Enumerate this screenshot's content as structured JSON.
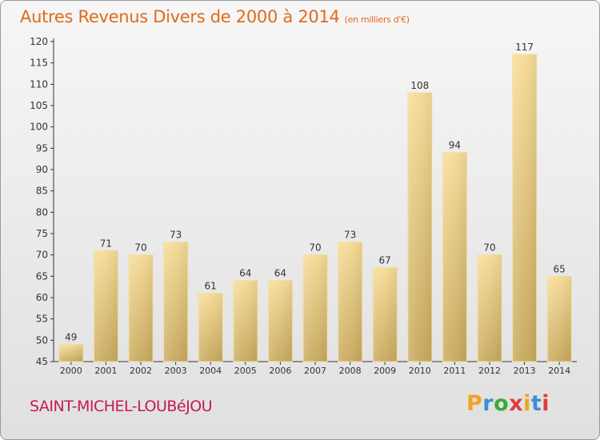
{
  "header": {
    "title": "Autres Revenus Divers de 2000 à 2014",
    "unit": "(en milliers d'€)"
  },
  "footer": {
    "commune": "SAINT-MICHEL-LOUBéJOU",
    "brand_letters": [
      "P",
      "r",
      "o",
      "x",
      "i",
      "t",
      "i"
    ],
    "brand_colors": [
      "#f2a323",
      "#3b8fd6",
      "#3aaa35",
      "#e23b3b",
      "#f2a323",
      "#3b8fd6",
      "#e23b3b"
    ]
  },
  "chart_data": {
    "type": "bar",
    "categories": [
      "2000",
      "2001",
      "2002",
      "2003",
      "2004",
      "2005",
      "2006",
      "2007",
      "2008",
      "2009",
      "2010",
      "2011",
      "2012",
      "2013",
      "2014"
    ],
    "values": [
      49,
      71,
      70,
      73,
      61,
      64,
      64,
      70,
      73,
      67,
      108,
      94,
      70,
      117,
      65
    ],
    "data_labels": [
      "49",
      "71",
      "70",
      "73",
      "61",
      "64",
      "64",
      "70",
      "73",
      "67",
      "108",
      "94",
      "70",
      "117",
      "65"
    ],
    "ylim": [
      45,
      120
    ],
    "yticks": [
      "45",
      "50",
      "55",
      "60",
      "65",
      "70",
      "75",
      "80",
      "85",
      "90",
      "95",
      "100",
      "105",
      "110",
      "115",
      "120"
    ],
    "grid": false,
    "bar_color": "#e8c878",
    "bar_edge_color": "#f3df9e"
  }
}
